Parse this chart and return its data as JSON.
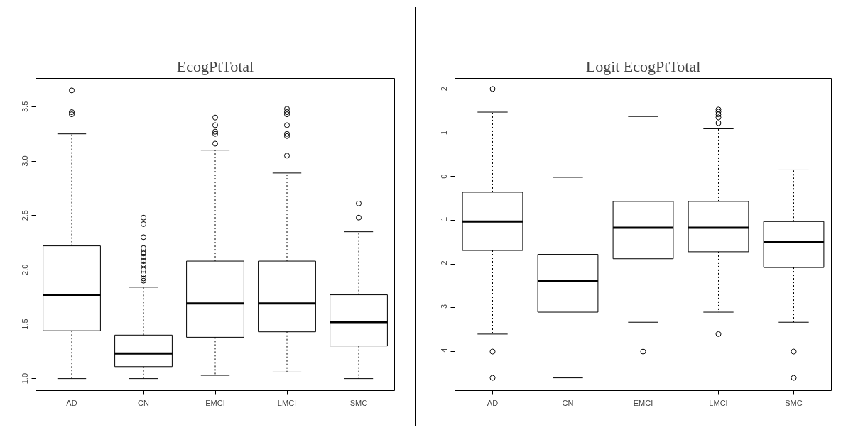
{
  "chart_data": [
    {
      "type": "box",
      "title": "EcogPtTotal",
      "categories": [
        "AD",
        "CN",
        "EMCI",
        "LMCI",
        "SMC"
      ],
      "ylim": [
        0.89,
        3.76
      ],
      "yticks": [
        {
          "value": 1.0,
          "label": "1.0"
        },
        {
          "value": 1.5,
          "label": "1.5"
        },
        {
          "value": 2.0,
          "label": "2.0"
        },
        {
          "value": 2.5,
          "label": "2.5"
        },
        {
          "value": 3.0,
          "label": "3.0"
        },
        {
          "value": 3.5,
          "label": "3.5"
        }
      ],
      "grid": false,
      "color": "#ffffff",
      "boxes": [
        {
          "low": 1.0,
          "q1": 1.44,
          "median": 1.77,
          "q3": 2.22,
          "high": 3.25,
          "outliers": [
            3.43,
            3.45,
            3.65
          ]
        },
        {
          "low": 1.0,
          "q1": 1.11,
          "median": 1.23,
          "q3": 1.4,
          "high": 1.84,
          "outliers": [
            1.9,
            1.92,
            1.96,
            2.0,
            2.05,
            2.08,
            2.12,
            2.15,
            2.16,
            2.2,
            2.3,
            2.42,
            2.48
          ]
        },
        {
          "low": 1.03,
          "q1": 1.38,
          "median": 1.69,
          "q3": 2.08,
          "high": 3.1,
          "outliers": [
            3.16,
            3.25,
            3.27,
            3.33,
            3.4
          ]
        },
        {
          "low": 1.06,
          "q1": 1.43,
          "median": 1.69,
          "q3": 2.08,
          "high": 2.89,
          "outliers": [
            3.05,
            3.23,
            3.25,
            3.33,
            3.43,
            3.45,
            3.48
          ]
        },
        {
          "low": 1.0,
          "q1": 1.3,
          "median": 1.52,
          "q3": 1.77,
          "high": 2.35,
          "outliers": [
            2.48,
            2.61
          ]
        }
      ]
    },
    {
      "type": "box",
      "title": "Logit EcogPtTotal",
      "categories": [
        "AD",
        "CN",
        "EMCI",
        "LMCI",
        "SMC"
      ],
      "ylim": [
        -4.89,
        2.24
      ],
      "yticks": [
        -4,
        -3,
        -2,
        -1,
        0,
        1,
        2
      ],
      "grid": false,
      "color": "#ffffff",
      "boxes": [
        {
          "low": -3.6,
          "q1": -1.69,
          "median": -1.03,
          "q3": -0.36,
          "high": 1.47,
          "outliers": [
            2.0,
            -4.0,
            -4.6
          ]
        },
        {
          "low": -4.6,
          "q1": -3.1,
          "median": -2.38,
          "q3": -1.78,
          "high": -0.02
        },
        {
          "low": -3.33,
          "q1": -1.88,
          "median": -1.17,
          "q3": -0.57,
          "high": 1.37,
          "outliers": [
            -4.0
          ]
        },
        {
          "low": -3.1,
          "q1": -1.72,
          "median": -1.17,
          "q3": -0.57,
          "high": 1.09,
          "outliers": [
            1.22,
            1.35,
            1.42,
            1.48,
            1.53,
            -3.6
          ]
        },
        {
          "low": -3.33,
          "q1": -2.08,
          "median": -1.5,
          "q3": -1.03,
          "high": 0.15,
          "outliers": [
            -4.0,
            -4.6
          ]
        }
      ]
    }
  ]
}
